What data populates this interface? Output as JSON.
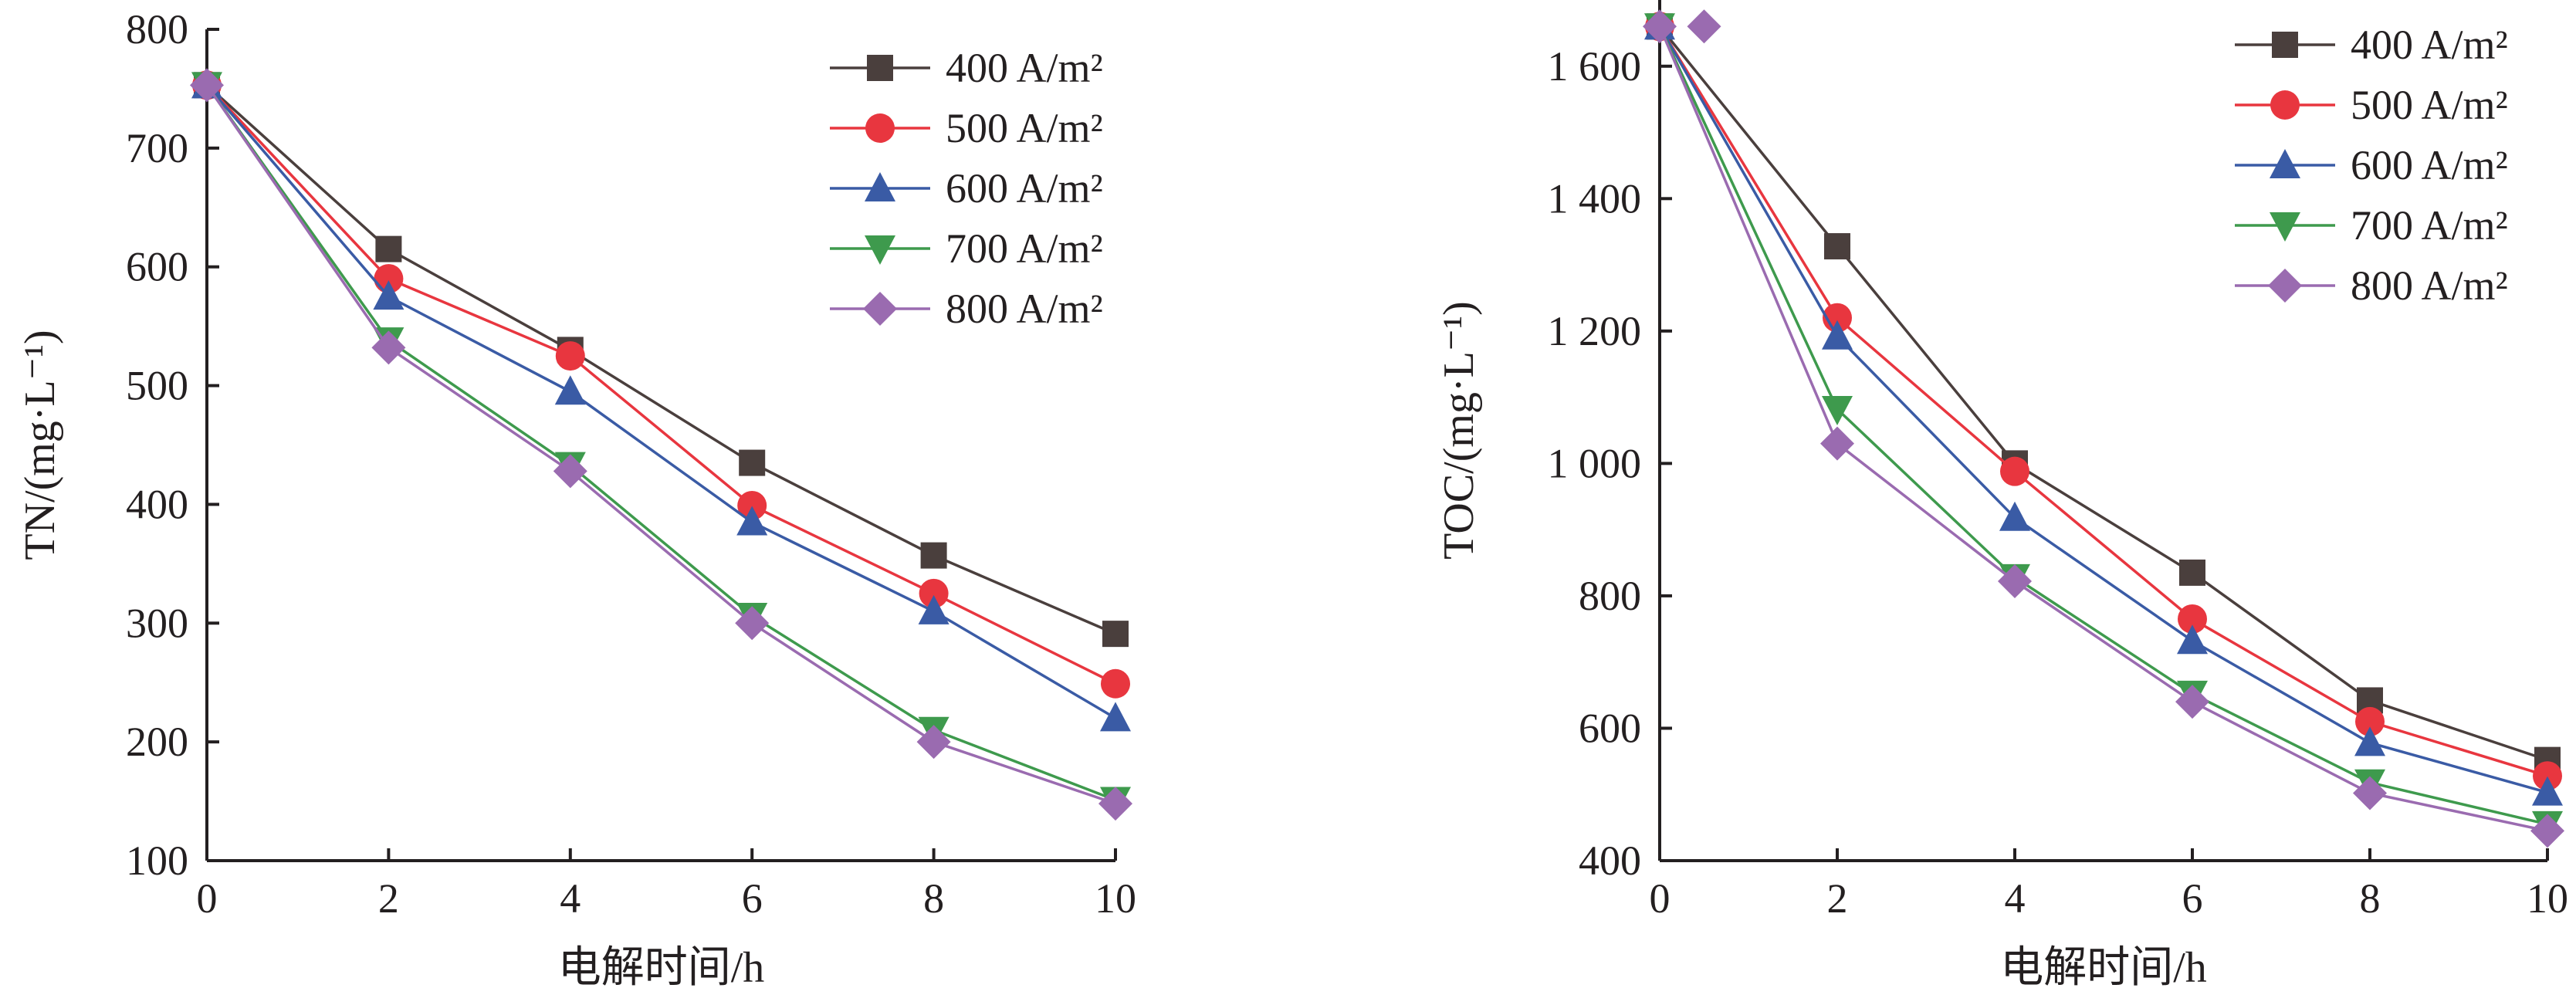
{
  "chart_data": [
    {
      "type": "line",
      "title": "",
      "xlabel": "电解时间/h",
      "ylabel": "TN/(mg·L⁻¹)",
      "x": [
        0,
        2,
        4,
        6,
        8,
        10
      ],
      "xlim": [
        0,
        10
      ],
      "ylim": [
        100,
        800
      ],
      "x_ticks": [
        "0",
        "2",
        "4",
        "6",
        "8",
        "10"
      ],
      "y_ticks": [
        "100",
        "200",
        "300",
        "400",
        "500",
        "600",
        "700",
        "800"
      ],
      "grid": false,
      "legend_position": "top-right",
      "series": [
        {
          "name": "400 A/m²",
          "color": "#4a3f3d",
          "marker": "square",
          "values": [
            753,
            615,
            530,
            435,
            357,
            291
          ]
        },
        {
          "name": "500 A/m²",
          "color": "#e8363f",
          "marker": "circle",
          "values": [
            753,
            590,
            525,
            399,
            325,
            249
          ]
        },
        {
          "name": "600 A/m²",
          "color": "#3a5ba5",
          "marker": "triangle-up",
          "values": [
            753,
            575,
            495,
            385,
            310,
            220
          ]
        },
        {
          "name": "700 A/m²",
          "color": "#3e9a4d",
          "marker": "triangle-down",
          "values": [
            753,
            538,
            433,
            306,
            210,
            151
          ]
        },
        {
          "name": "800 A/m²",
          "color": "#9a6bb0",
          "marker": "diamond",
          "values": [
            753,
            532,
            428,
            300,
            200,
            148
          ]
        }
      ]
    },
    {
      "type": "line",
      "title": "",
      "xlabel": "电解时间/h",
      "ylabel": "TOC/(mg·L⁻¹)",
      "x": [
        0,
        2,
        4,
        6,
        8,
        10
      ],
      "xlim": [
        0,
        10
      ],
      "ylim": [
        400,
        1700
      ],
      "x_ticks": [
        "0",
        "2",
        "4",
        "6",
        "8",
        "10"
      ],
      "y_ticks": [
        "400",
        "600",
        "800",
        "1 000",
        "1 200",
        "1 400",
        "1 600"
      ],
      "grid": false,
      "legend_position": "top-right",
      "series": [
        {
          "name": "400 A/m²",
          "color": "#4a3f3d",
          "marker": "square",
          "values": [
            1660,
            1328,
            1000,
            835,
            642,
            552
          ]
        },
        {
          "name": "500 A/m²",
          "color": "#e8363f",
          "marker": "circle",
          "values": [
            1660,
            1220,
            988,
            765,
            610,
            528
          ]
        },
        {
          "name": "600 A/m²",
          "color": "#3a5ba5",
          "marker": "triangle-up",
          "values": [
            1660,
            1192,
            918,
            732,
            578,
            503
          ]
        },
        {
          "name": "700 A/m²",
          "color": "#3e9a4d",
          "marker": "triangle-down",
          "values": [
            1660,
            1082,
            828,
            652,
            518,
            455
          ]
        },
        {
          "name": "800 A/m²",
          "color": "#9a6bb0",
          "marker": "diamond",
          "values": [
            1660,
            1030,
            822,
            640,
            502,
            445
          ]
        }
      ],
      "extra_points": [
        {
          "series": "800 A/m²",
          "x": 0.5,
          "y": 1660
        }
      ]
    }
  ]
}
